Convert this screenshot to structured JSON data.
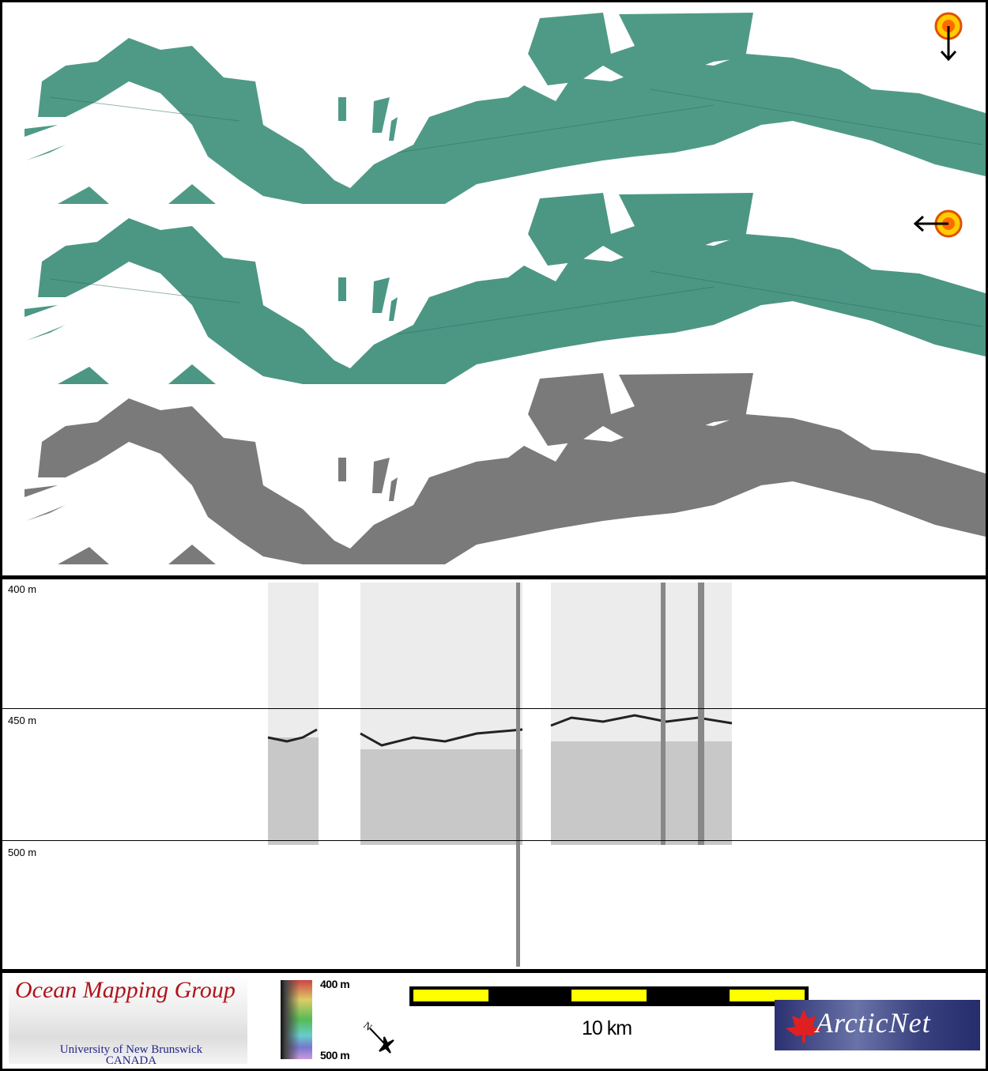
{
  "map_panels": [
    {
      "shading": "hillshade",
      "palette": "green-teal",
      "sun_icon": "sun-illumination-icon",
      "arrow": "arrow-down-icon",
      "color": "#4f9a86"
    },
    {
      "shading": "hillshade",
      "palette": "green-teal",
      "sun_icon": "sun-illumination-icon",
      "arrow": "arrow-left-icon",
      "color": "#4c9684"
    },
    {
      "shading": "backscatter",
      "palette": "greyscale",
      "color": "#7a7a7a"
    }
  ],
  "profile": {
    "depth_labels": [
      "400 m",
      "450 m",
      "500 m"
    ]
  },
  "legend": {
    "omg_logo": {
      "title": "Ocean Mapping Group",
      "line1": "University of New Brunswick",
      "line2": "CANADA"
    },
    "color_scale": {
      "top_label": "400 m",
      "bottom_label": "500 m"
    },
    "north_arrow": {
      "label": "N",
      "icon": "north-arrow-icon"
    },
    "scale_bar": {
      "label": "10 km",
      "colors": [
        "#ffff00",
        "#000000"
      ]
    },
    "arcticnet_logo": {
      "text": "ArcticNet",
      "color": "#2a3070",
      "leaf_color": "#e02020"
    }
  }
}
